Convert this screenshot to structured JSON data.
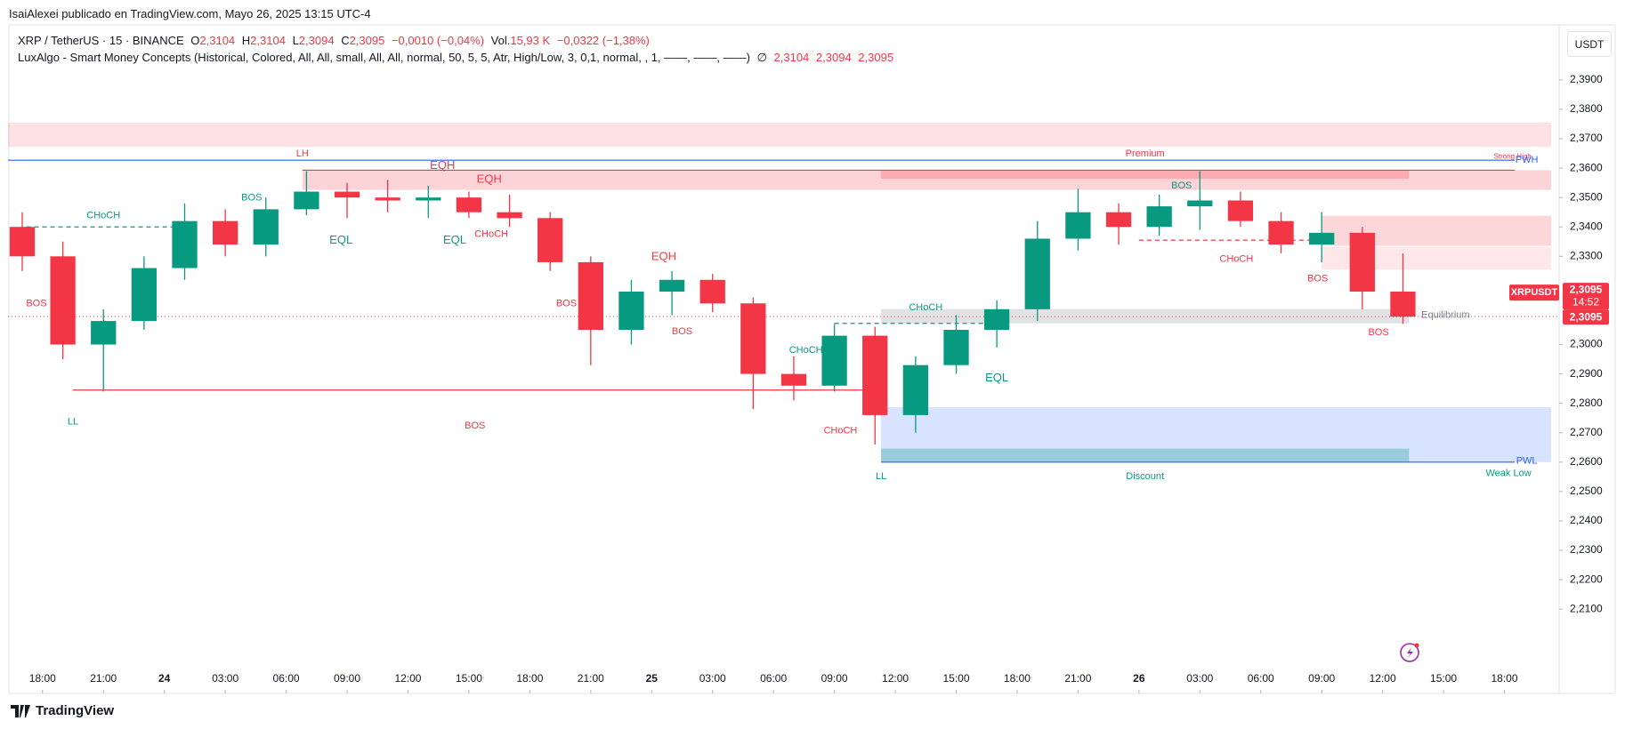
{
  "header": {
    "publisher": "IsaiAlexei publicado en TradingView.com, Mayo 26, 2025 13:15 UTC-4"
  },
  "legend": {
    "symbol": "XRP / TetherUS · 15 · BINANCE",
    "o_label": "O",
    "o": "2,3104",
    "h_label": "H",
    "h": "2,3104",
    "l_label": "L",
    "l": "2,3094",
    "c_label": "C",
    "c": "2,3095",
    "change": "−0,0010 (−0,04%)",
    "vol_label": "Vol.",
    "vol": "15,93 K",
    "vol_change": "−0,0322 (−1,38%)"
  },
  "indicator": {
    "name": "LuxAlgo - Smart Money Concepts (Historical, Colored, All, All, small, All, All, normal, 50, 5, 5, Atr, High/Low, 3, 0,1, normal, , 1, ——, ——, ——)",
    "symbol": "∅",
    "values": [
      "2,3104",
      "2,3094",
      "2,3095"
    ]
  },
  "currency_button": "USDT",
  "footer": "TradingView",
  "chart_data": {
    "type": "candlestick",
    "up_color": "#089981",
    "down_color": "#f23645",
    "xlim": [
      -1.7,
      74.3
    ],
    "ylim": [
      2.191,
      2.3942
    ],
    "grid": false,
    "xticks": [
      {
        "value": 0,
        "label": "18:00"
      },
      {
        "value": 3,
        "label": "21:00"
      },
      {
        "value": 6,
        "label": "24"
      },
      {
        "value": 9,
        "label": "03:00"
      },
      {
        "value": 12,
        "label": "06:00"
      },
      {
        "value": 15,
        "label": "09:00"
      },
      {
        "value": 18,
        "label": "12:00"
      },
      {
        "value": 21,
        "label": "15:00"
      },
      {
        "value": 24,
        "label": "18:00"
      },
      {
        "value": 27,
        "label": "21:00"
      },
      {
        "value": 30,
        "label": "25"
      },
      {
        "value": 33,
        "label": "03:00"
      },
      {
        "value": 36,
        "label": "06:00"
      },
      {
        "value": 39,
        "label": "09:00"
      },
      {
        "value": 42,
        "label": "12:00"
      },
      {
        "value": 45,
        "label": "15:00"
      },
      {
        "value": 48,
        "label": "18:00"
      },
      {
        "value": 51,
        "label": "21:00"
      },
      {
        "value": 54,
        "label": "26"
      },
      {
        "value": 57,
        "label": "03:00"
      },
      {
        "value": 60,
        "label": "06:00"
      },
      {
        "value": 63,
        "label": "09:00"
      },
      {
        "value": 66,
        "label": "12:00"
      },
      {
        "value": 69,
        "label": "15:00"
      },
      {
        "value": 72,
        "label": "18:00"
      }
    ],
    "yticks": [
      {
        "value": 2.21,
        "label": "2,2100"
      },
      {
        "value": 2.22,
        "label": "2,2200"
      },
      {
        "value": 2.23,
        "label": "2,2300"
      },
      {
        "value": 2.24,
        "label": "2,2400"
      },
      {
        "value": 2.25,
        "label": "2,2500"
      },
      {
        "value": 2.26,
        "label": "2,2600"
      },
      {
        "value": 2.27,
        "label": "2,2700"
      },
      {
        "value": 2.28,
        "label": "2,2800"
      },
      {
        "value": 2.29,
        "label": "2,2900"
      },
      {
        "value": 2.3,
        "label": "2,3000"
      },
      {
        "value": 2.33,
        "label": "2,3300"
      },
      {
        "value": 2.34,
        "label": "2,3400"
      },
      {
        "value": 2.35,
        "label": "2,3500"
      },
      {
        "value": 2.36,
        "label": "2,3600"
      },
      {
        "value": 2.37,
        "label": "2,3700"
      },
      {
        "value": 2.38,
        "label": "2,3800"
      },
      {
        "value": 2.39,
        "label": "2,3900"
      }
    ],
    "x": [
      -1,
      1,
      3,
      5,
      7,
      9,
      11,
      13,
      15,
      17,
      19,
      21,
      23,
      25,
      27,
      29,
      31,
      33,
      35,
      37,
      39,
      41,
      43,
      45,
      47,
      49,
      51,
      53,
      55,
      57,
      59,
      61,
      63,
      65,
      67
    ],
    "open": [
      2.34,
      2.33,
      2.3,
      2.308,
      2.326,
      2.342,
      2.334,
      2.346,
      2.352,
      2.35,
      2.349,
      2.35,
      2.345,
      2.343,
      2.328,
      2.305,
      2.318,
      2.322,
      2.314,
      2.29,
      2.286,
      2.303,
      2.276,
      2.293,
      2.305,
      2.312,
      2.336,
      2.345,
      2.34,
      2.347,
      2.349,
      2.342,
      2.334,
      2.338,
      2.318
    ],
    "high": [
      2.345,
      2.335,
      2.312,
      2.33,
      2.348,
      2.346,
      2.35,
      2.359,
      2.355,
      2.356,
      2.354,
      2.352,
      2.351,
      2.345,
      2.33,
      2.322,
      2.325,
      2.324,
      2.316,
      2.296,
      2.307,
      2.306,
      2.296,
      2.31,
      2.315,
      2.342,
      2.353,
      2.348,
      2.351,
      2.359,
      2.352,
      2.345,
      2.345,
      2.34,
      2.331
    ],
    "low": [
      2.325,
      2.295,
      2.284,
      2.305,
      2.322,
      2.33,
      2.33,
      2.344,
      2.343,
      2.345,
      2.343,
      2.343,
      2.34,
      2.325,
      2.293,
      2.3,
      2.31,
      2.311,
      2.278,
      2.281,
      2.284,
      2.266,
      2.27,
      2.29,
      2.299,
      2.308,
      2.332,
      2.334,
      2.337,
      2.339,
      2.34,
      2.331,
      2.328,
      2.312,
      2.307
    ],
    "close": [
      2.33,
      2.3,
      2.308,
      2.326,
      2.342,
      2.334,
      2.346,
      2.352,
      2.35,
      2.349,
      2.35,
      2.345,
      2.343,
      2.328,
      2.305,
      2.318,
      2.322,
      2.314,
      2.29,
      2.286,
      2.303,
      2.276,
      2.293,
      2.305,
      2.312,
      2.336,
      2.345,
      2.34,
      2.347,
      2.349,
      2.342,
      2.334,
      2.338,
      2.318,
      2.3095
    ],
    "last_price": {
      "value": 2.3095,
      "label": "2,3095",
      "symbol": "XRPUSDT",
      "countdown": "14:52"
    },
    "zones": [
      {
        "x0": -1.7,
        "x1": 74.3,
        "y0": 2.3673,
        "y1": 2.3755,
        "color": "rgba(242,54,69,0.15)"
      },
      {
        "x0": 12.8,
        "x1": 74.3,
        "y0": 2.3526,
        "y1": 2.3593,
        "color": "rgba(242,54,69,0.22)"
      },
      {
        "x0": 41.3,
        "x1": 67.3,
        "y0": 2.3564,
        "y1": 2.3593,
        "color": "rgba(242,54,69,0.25)"
      },
      {
        "x0": 63,
        "x1": 74.3,
        "y0": 2.3336,
        "y1": 2.3438,
        "color": "rgba(242,54,69,0.2)"
      },
      {
        "x0": 63,
        "x1": 74.3,
        "y0": 2.3255,
        "y1": 2.3332,
        "color": "rgba(242,54,69,0.12)"
      },
      {
        "x0": 41.3,
        "x1": 67.3,
        "y0": 2.3072,
        "y1": 2.3121,
        "color": "rgba(120,123,134,0.22)"
      },
      {
        "x0": 41.3,
        "x1": 74.3,
        "y0": 2.26,
        "y1": 2.2787,
        "color": "rgba(41,98,255,0.18)"
      },
      {
        "x0": 41.3,
        "x1": 67.3,
        "y0": 2.26,
        "y1": 2.2646,
        "color": "rgba(8,153,129,0.3)"
      }
    ],
    "lines": [
      {
        "x0": -1.7,
        "x1": 72.5,
        "y": 2.3627,
        "color": "#2962ff",
        "dash": false
      },
      {
        "x0": 12.8,
        "x1": 72.5,
        "y": 2.3593,
        "color": "#f23645",
        "dash": false
      },
      {
        "x0": 1.5,
        "x1": 41.3,
        "y": 2.2845,
        "color": "#f23645",
        "dash": false
      },
      {
        "x0": 41.3,
        "x1": 72.5,
        "y": 2.26,
        "color": "#2962ff",
        "dash": false
      },
      {
        "x0": -0.8,
        "x1": 7,
        "y": 2.34,
        "color": "#089981",
        "dash": true
      },
      {
        "x0": 39,
        "x1": 47,
        "y": 2.3072,
        "color": "#089981",
        "dash": true
      },
      {
        "x0": 54,
        "x1": 62.5,
        "y": 2.3355,
        "color": "#f23645",
        "dash": true
      }
    ],
    "annotations": [
      {
        "text": "CHoCH",
        "x": 3.0,
        "y": 2.3438,
        "color": "#089981"
      },
      {
        "text": "BOS",
        "x": -0.3,
        "y": 2.3139,
        "color": "#f23645"
      },
      {
        "text": "BOS",
        "x": 10.3,
        "y": 2.3498,
        "color": "#089981"
      },
      {
        "text": "EQL",
        "x": 14.7,
        "y": 2.3353,
        "color": "#089981"
      },
      {
        "text": "EQL",
        "x": 20.3,
        "y": 2.3353,
        "color": "#089981"
      },
      {
        "text": "EQH",
        "x": 19.7,
        "y": 2.3607,
        "color": "#f23645"
      },
      {
        "text": "EQH",
        "x": 22.0,
        "y": 2.3561,
        "color": "#f23645"
      },
      {
        "text": "CHoCH",
        "x": 22.1,
        "y": 2.3375,
        "color": "#f23645"
      },
      {
        "text": "BOS",
        "x": 25.8,
        "y": 2.3139,
        "color": "#f23645"
      },
      {
        "text": "EQH",
        "x": 30.6,
        "y": 2.3297,
        "color": "#f23645"
      },
      {
        "text": "BOS",
        "x": 31.5,
        "y": 2.3044,
        "color": "#f23645"
      },
      {
        "text": "CHoCH",
        "x": 37.6,
        "y": 2.298,
        "color": "#089981"
      },
      {
        "text": "CHoCH",
        "x": 39.3,
        "y": 2.2706,
        "color": "#f23645"
      },
      {
        "text": "CHoCH",
        "x": 43.5,
        "y": 2.3125,
        "color": "#089981"
      },
      {
        "text": "EQL",
        "x": 47.0,
        "y": 2.2885,
        "color": "#089981"
      },
      {
        "text": "BOS",
        "x": 56.1,
        "y": 2.354,
        "color": "#089981"
      },
      {
        "text": "CHoCH",
        "x": 58.8,
        "y": 2.329,
        "color": "#f23645"
      },
      {
        "text": "BOS",
        "x": 62.8,
        "y": 2.3223,
        "color": "#f23645"
      },
      {
        "text": "BOS",
        "x": 65.8,
        "y": 2.304,
        "color": "#f23645"
      },
      {
        "text": "LL",
        "x": 41.3,
        "y": 2.2551,
        "color": "#089981"
      },
      {
        "text": "LL",
        "x": 1.5,
        "y": 2.2737,
        "color": "#089981"
      },
      {
        "text": "LH",
        "x": 12.8,
        "y": 2.3649,
        "color": "#f23645"
      },
      {
        "text": "BOS",
        "x": 21.3,
        "y": 2.2723,
        "color": "#f23645"
      },
      {
        "text": "Premium",
        "x": 54.3,
        "y": 2.3649,
        "color": "#f23645"
      },
      {
        "text": "Discount",
        "x": 54.3,
        "y": 2.2551,
        "color": "#089981"
      },
      {
        "text": "Equilibrium",
        "x": 69.1,
        "y": 2.31,
        "color": "#787b86"
      },
      {
        "text": "Strong High",
        "x": 72.4,
        "y": 2.3638,
        "color": "#f23645"
      },
      {
        "text": "PWH",
        "x": 73.1,
        "y": 2.3627,
        "color": "#2962ff"
      },
      {
        "text": "PWL",
        "x": 73.1,
        "y": 2.2604,
        "color": "#2962ff"
      },
      {
        "text": "Weak Low",
        "x": 72.2,
        "y": 2.2561,
        "color": "#089981"
      }
    ]
  }
}
